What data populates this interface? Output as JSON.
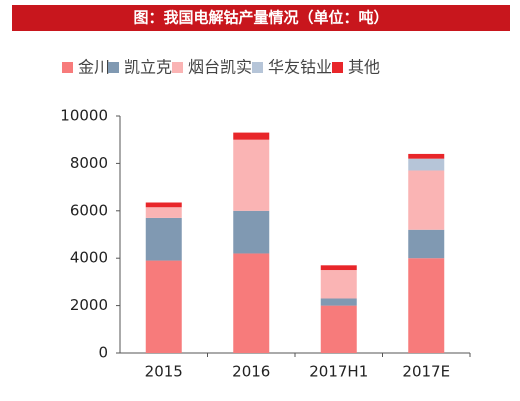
{
  "chart_data": {
    "type": "stacked_bar",
    "title": "图：我国电解钴产量情况（单位：吨）",
    "categories": [
      "2015",
      "2016",
      "2017H1",
      "2017E"
    ],
    "series": [
      {
        "name": "金川",
        "color": "#f77b7b",
        "values": [
          3900,
          4200,
          2000,
          4000
        ]
      },
      {
        "name": "凯立克",
        "color": "#8099b2",
        "values": [
          1800,
          1800,
          300,
          1200
        ]
      },
      {
        "name": "烟台凯实",
        "color": "#fab4b4",
        "values": [
          450,
          3000,
          1200,
          2500
        ]
      },
      {
        "name": "华友钴业",
        "color": "#b6c5d8",
        "values": [
          0,
          0,
          0,
          500
        ]
      },
      {
        "name": "其他",
        "color": "#e8262a",
        "values": [
          200,
          300,
          200,
          200
        ]
      }
    ],
    "ylim": [
      0,
      10000
    ],
    "yticks": [
      0,
      2000,
      4000,
      6000,
      8000,
      10000
    ],
    "grid": false
  }
}
